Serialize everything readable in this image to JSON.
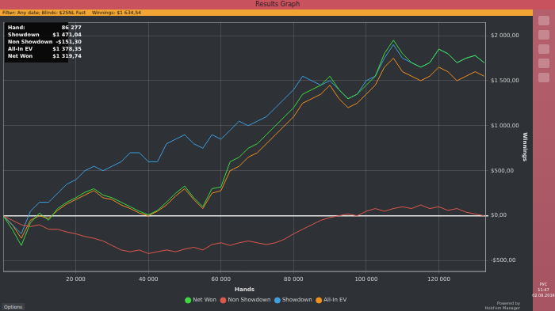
{
  "window": {
    "title": "Results Graph",
    "filter": "Filter: Any date; Blinds: $25NL Fast",
    "winnings": "Winnings: $1 634,54",
    "stats": [
      [
        "Hand:",
        "86 277"
      ],
      [
        "Showdown",
        "$1 471,04"
      ],
      [
        "Non Showdown",
        "-$151,30"
      ],
      [
        "All-In EV",
        "$1 378,35"
      ],
      [
        "Net Won",
        "$1 319,74"
      ]
    ],
    "options": "Options",
    "powered_by": [
      "Powered by",
      "Hold'em Manager"
    ],
    "tray": [
      "РУС",
      "11:47",
      "02.08.2016"
    ]
  },
  "chart_data": {
    "type": "line",
    "x_label": "Hands",
    "y_label": "Winnings",
    "x": [
      0,
      2500,
      5000,
      7500,
      10000,
      12500,
      15000,
      17500,
      20000,
      22500,
      25000,
      27500,
      30000,
      32500,
      35000,
      37500,
      40000,
      42500,
      45000,
      47500,
      50000,
      52500,
      55000,
      57500,
      60000,
      62500,
      65000,
      67500,
      70000,
      72500,
      75000,
      77500,
      80000,
      82500,
      85000,
      87500,
      90000,
      92500,
      95000,
      97500,
      100000,
      102500,
      105000,
      107500,
      110000,
      112500,
      115000,
      117500,
      120000,
      122500,
      125000,
      127500,
      130000,
      132500
    ],
    "series": [
      {
        "name": "Net Won",
        "color": "#3ddc3d",
        "values": [
          0,
          -150,
          -330,
          -80,
          30,
          -50,
          80,
          150,
          200,
          260,
          300,
          230,
          200,
          150,
          100,
          50,
          10,
          60,
          150,
          250,
          330,
          200,
          100,
          300,
          320,
          600,
          650,
          750,
          800,
          900,
          1000,
          1100,
          1200,
          1350,
          1400,
          1450,
          1550,
          1400,
          1300,
          1350,
          1450,
          1550,
          1800,
          1950,
          1800,
          1700,
          1650,
          1700,
          1850,
          1800,
          1700,
          1750,
          1780,
          1700
        ]
      },
      {
        "name": "Non Showdown",
        "color": "#e0574c",
        "values": [
          0,
          -50,
          -100,
          -120,
          -100,
          -150,
          -150,
          -180,
          -200,
          -230,
          -250,
          -280,
          -330,
          -380,
          -400,
          -380,
          -420,
          -400,
          -380,
          -400,
          -370,
          -350,
          -380,
          -320,
          -300,
          -330,
          -300,
          -280,
          -300,
          -320,
          -300,
          -260,
          -200,
          -150,
          -100,
          -50,
          -20,
          0,
          20,
          0,
          50,
          80,
          50,
          80,
          100,
          80,
          120,
          80,
          100,
          60,
          80,
          40,
          20,
          0
        ]
      },
      {
        "name": "Showdown",
        "color": "#3d9fe0",
        "values": [
          0,
          -100,
          -200,
          50,
          150,
          150,
          250,
          350,
          400,
          500,
          550,
          500,
          550,
          600,
          700,
          700,
          600,
          600,
          800,
          850,
          900,
          800,
          750,
          900,
          850,
          950,
          1050,
          1000,
          1050,
          1100,
          1200,
          1300,
          1400,
          1550,
          1500,
          1450,
          1500,
          1400,
          1300,
          1350,
          1500,
          1550,
          1750,
          1900,
          1750,
          1700,
          1650,
          1700,
          1850,
          1800,
          1700,
          1750,
          1780,
          1700
        ]
      },
      {
        "name": "All-In EV",
        "color": "#f0901e",
        "values": [
          0,
          -100,
          -250,
          -50,
          0,
          -30,
          60,
          130,
          180,
          230,
          280,
          200,
          180,
          120,
          80,
          30,
          0,
          50,
          120,
          220,
          300,
          180,
          80,
          250,
          280,
          500,
          550,
          650,
          700,
          800,
          900,
          1000,
          1100,
          1250,
          1300,
          1350,
          1450,
          1300,
          1200,
          1250,
          1350,
          1450,
          1650,
          1750,
          1600,
          1550,
          1500,
          1550,
          1650,
          1600,
          1500,
          1550,
          1600,
          1550
        ]
      }
    ],
    "xlim": [
      0,
      133000
    ],
    "xticks": [
      {
        "value": 20000,
        "label": "20 000"
      },
      {
        "value": 40000,
        "label": "40 000"
      },
      {
        "value": 60000,
        "label": "60 000"
      },
      {
        "value": 80000,
        "label": "80 000"
      },
      {
        "value": 100000,
        "label": "100 000"
      },
      {
        "value": 120000,
        "label": "120 000"
      }
    ],
    "ylim": [
      -620,
      2150
    ],
    "yticks": [
      {
        "value": -500,
        "label": "-$500,00"
      },
      {
        "value": 0,
        "label": "$0,00"
      },
      {
        "value": 500,
        "label": "$500,00"
      },
      {
        "value": 1000,
        "label": "$1 000,00"
      },
      {
        "value": 1500,
        "label": "$1 500,00"
      },
      {
        "value": 2000,
        "label": "$2 000,00"
      }
    ],
    "grid": true,
    "legend": "bottom"
  }
}
